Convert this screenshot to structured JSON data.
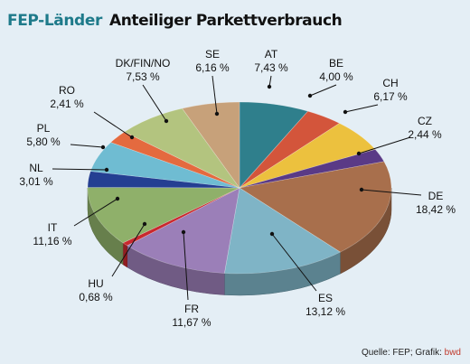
{
  "header": {
    "title_part1": "FEP-Länder",
    "title_part2": "Anteiliger Parkettverbrauch",
    "title_color": "#1e7a8a"
  },
  "source": {
    "prefix": "Quelle: FEP; Grafik: ",
    "brand": "bwd",
    "brand_color": "#c0392b"
  },
  "chart_data": {
    "type": "pie",
    "title": "Anteiliger Parkettverbrauch",
    "unit": "%",
    "slices": [
      {
        "label": "AT",
        "value_text": "7,43 %",
        "value": 7.43,
        "color": "#2f7f8c"
      },
      {
        "label": "BE",
        "value_text": "4,00 %",
        "value": 4.0,
        "color": "#d3553b"
      },
      {
        "label": "CH",
        "value_text": "6,17 %",
        "value": 6.17,
        "color": "#ecc13e"
      },
      {
        "label": "CZ",
        "value_text": "2,44 %",
        "value": 2.44,
        "color": "#5a3a86"
      },
      {
        "label": "DE",
        "value_text": "18,42 %",
        "value": 18.42,
        "color": "#a86f4c"
      },
      {
        "label": "ES",
        "value_text": "13,12 %",
        "value": 13.12,
        "color": "#7fb4c6"
      },
      {
        "label": "FR",
        "value_text": "11,67 %",
        "value": 11.67,
        "color": "#9b7fb8"
      },
      {
        "label": "HU",
        "value_text": "0,68 %",
        "value": 0.68,
        "color": "#c9282e"
      },
      {
        "label": "IT",
        "value_text": "11,16 %",
        "value": 11.16,
        "color": "#8fb06a"
      },
      {
        "label": "NL",
        "value_text": "3,01 %",
        "value": 3.01,
        "color": "#243f92"
      },
      {
        "label": "PL",
        "value_text": "5,80 %",
        "value": 5.8,
        "color": "#6fbcd2"
      },
      {
        "label": "RO",
        "value_text": "2,41 %",
        "value": 2.41,
        "color": "#e46a3f"
      },
      {
        "label": "DK/FIN/NO",
        "value_text": "7,53 %",
        "value": 7.53,
        "color": "#b3c47f"
      },
      {
        "label": "SE",
        "value_text": "6,16 %",
        "value": 6.16,
        "color": "#c7a17a"
      }
    ]
  }
}
